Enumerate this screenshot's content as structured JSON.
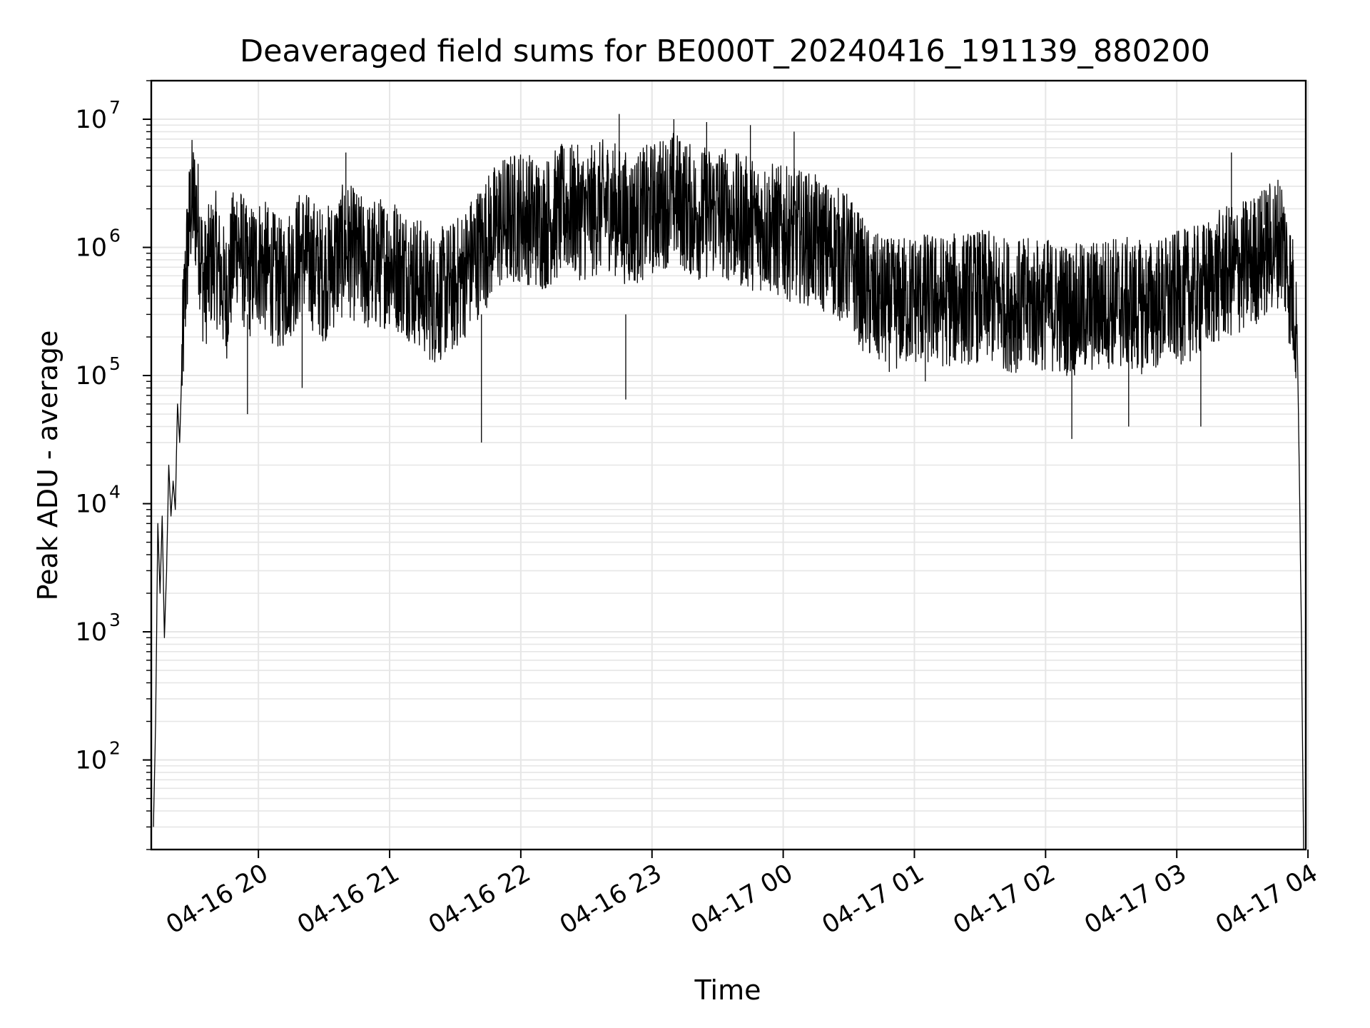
{
  "chart_data": {
    "type": "line",
    "title": "Deaveraged field sums for BE000T_20240416_191139_880200",
    "xlabel": "Time",
    "ylabel": "Peak ADU - average",
    "yscale": "log",
    "ylim": [
      20,
      20000000
    ],
    "xlim": [
      "2024-04-16 19:11:00",
      "2024-04-17 03:59:00"
    ],
    "grid": true,
    "line_color": "#000000",
    "grid_color": "#e6e6e6",
    "x_ticks": [
      {
        "label": "04-16 20",
        "t": "2024-04-16 20:00"
      },
      {
        "label": "04-16 21",
        "t": "2024-04-16 21:00"
      },
      {
        "label": "04-16 22",
        "t": "2024-04-16 22:00"
      },
      {
        "label": "04-16 23",
        "t": "2024-04-16 23:00"
      },
      {
        "label": "04-17 00",
        "t": "2024-04-17 00:00"
      },
      {
        "label": "04-17 01",
        "t": "2024-04-17 01:00"
      },
      {
        "label": "04-17 02",
        "t": "2024-04-17 02:00"
      },
      {
        "label": "04-17 03",
        "t": "2024-04-17 03:00"
      },
      {
        "label": "04-17 04",
        "t": "2024-04-17 04:00"
      }
    ],
    "y_ticks": [
      {
        "label": "10",
        "exp": "2",
        "value": 100
      },
      {
        "label": "10",
        "exp": "3",
        "value": 1000
      },
      {
        "label": "10",
        "exp": "4",
        "value": 10000
      },
      {
        "label": "10",
        "exp": "5",
        "value": 100000
      },
      {
        "label": "10",
        "exp": "6",
        "value": 1000000
      },
      {
        "label": "10",
        "exp": "7",
        "value": 10000000
      }
    ],
    "series": [
      {
        "points": [
          [
            "2024-04-16 19:12",
            30
          ],
          [
            "2024-04-16 19:13",
            200
          ],
          [
            "2024-04-16 19:14",
            7000
          ],
          [
            "2024-04-16 19:15",
            2000
          ],
          [
            "2024-04-16 19:16",
            8000
          ],
          [
            "2024-04-16 19:17",
            900
          ],
          [
            "2024-04-16 19:18",
            3000
          ],
          [
            "2024-04-16 19:19",
            20000
          ],
          [
            "2024-04-16 19:20",
            8000
          ],
          [
            "2024-04-16 19:21",
            15000
          ],
          [
            "2024-04-16 19:22",
            9000
          ],
          [
            "2024-04-16 19:23",
            60000
          ],
          [
            "2024-04-16 19:24",
            30000
          ],
          [
            "2024-04-16 19:25",
            120000
          ],
          [
            "2024-04-16 19:26",
            300000
          ],
          [
            "2024-04-16 19:27",
            700000
          ],
          [
            "2024-04-16 19:29",
            2000000
          ],
          [
            "2024-04-16 19:30",
            2300000
          ],
          [
            "2024-04-16 19:32",
            1800000
          ],
          [
            "2024-04-16 19:35",
            500000
          ],
          [
            "2024-04-16 19:40",
            900000
          ],
          [
            "2024-04-16 19:45",
            400000
          ],
          [
            "2024-04-16 19:50",
            1200000
          ],
          [
            "2024-04-16 19:55",
            600000
          ],
          [
            "2024-04-16 20:00",
            800000
          ],
          [
            "2024-04-16 20:10",
            500000
          ],
          [
            "2024-04-16 20:20",
            900000
          ],
          [
            "2024-04-16 20:30",
            600000
          ],
          [
            "2024-04-16 20:40",
            1000000
          ],
          [
            "2024-04-16 20:50",
            700000
          ],
          [
            "2024-04-16 21:00",
            800000
          ],
          [
            "2024-04-16 21:10",
            600000
          ],
          [
            "2024-04-16 21:20",
            400000
          ],
          [
            "2024-04-16 21:30",
            500000
          ],
          [
            "2024-04-16 21:40",
            900000
          ],
          [
            "2024-04-16 21:50",
            1500000
          ],
          [
            "2024-04-16 22:00",
            1800000
          ],
          [
            "2024-04-16 22:10",
            1500000
          ],
          [
            "2024-04-16 22:20",
            2000000
          ],
          [
            "2024-04-16 22:30",
            1800000
          ],
          [
            "2024-04-16 22:40",
            2200000
          ],
          [
            "2024-04-16 22:50",
            1600000
          ],
          [
            "2024-04-16 23:00",
            2000000
          ],
          [
            "2024-04-16 23:10",
            2500000
          ],
          [
            "2024-04-16 23:20",
            1800000
          ],
          [
            "2024-04-16 23:30",
            2000000
          ],
          [
            "2024-04-16 23:40",
            1600000
          ],
          [
            "2024-04-16 23:50",
            1500000
          ],
          [
            "2024-04-17 00:00",
            1300000
          ],
          [
            "2024-04-17 00:10",
            1200000
          ],
          [
            "2024-04-17 00:20",
            1000000
          ],
          [
            "2024-04-17 00:30",
            800000
          ],
          [
            "2024-04-17 00:40",
            400000
          ],
          [
            "2024-04-17 00:50",
            350000
          ],
          [
            "2024-04-17 01:00",
            400000
          ],
          [
            "2024-04-17 01:15",
            380000
          ],
          [
            "2024-04-17 01:30",
            420000
          ],
          [
            "2024-04-17 01:45",
            350000
          ],
          [
            "2024-04-17 02:00",
            360000
          ],
          [
            "2024-04-17 02:15",
            320000
          ],
          [
            "2024-04-17 02:30",
            380000
          ],
          [
            "2024-04-17 02:45",
            340000
          ],
          [
            "2024-04-17 03:00",
            400000
          ],
          [
            "2024-04-17 03:10",
            450000
          ],
          [
            "2024-04-17 03:20",
            600000
          ],
          [
            "2024-04-17 03:30",
            700000
          ],
          [
            "2024-04-17 03:40",
            900000
          ],
          [
            "2024-04-17 03:48",
            1200000
          ],
          [
            "2024-04-17 03:52",
            500000
          ],
          [
            "2024-04-17 03:55",
            250000
          ],
          [
            "2024-04-17 03:56",
            20000
          ],
          [
            "2024-04-17 03:57",
            1000
          ],
          [
            "2024-04-17 03:58",
            20
          ]
        ]
      }
    ],
    "spikes_up": [
      [
        "2024-04-16 20:40",
        5500000
      ],
      [
        "2024-04-16 21:50",
        4000000
      ],
      [
        "2024-04-16 22:45",
        11000000
      ],
      [
        "2024-04-16 23:10",
        10000000
      ],
      [
        "2024-04-16 23:25",
        9500000
      ],
      [
        "2024-04-16 23:45",
        9000000
      ],
      [
        "2024-04-17 00:05",
        8000000
      ],
      [
        "2024-04-17 03:25",
        5500000
      ],
      [
        "2024-04-17 03:40",
        2800000
      ]
    ],
    "spikes_down": [
      [
        "2024-04-16 19:55",
        50000
      ],
      [
        "2024-04-16 20:20",
        80000
      ],
      [
        "2024-04-16 21:42",
        30000
      ],
      [
        "2024-04-16 22:48",
        65000
      ],
      [
        "2024-04-17 01:05",
        90000
      ],
      [
        "2024-04-17 02:12",
        32000
      ],
      [
        "2024-04-17 02:38",
        40000
      ],
      [
        "2024-04-17 03:11",
        40000
      ]
    ]
  }
}
